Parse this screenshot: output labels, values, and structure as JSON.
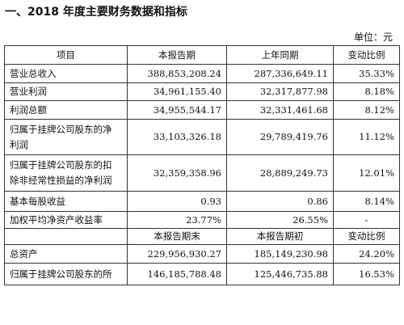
{
  "document": {
    "title": "一、2018 年度主要财务数据和指标",
    "unit": "单位：元"
  },
  "table": {
    "header1": [
      "项目",
      "本报告期",
      "上年同期",
      "变动比例"
    ],
    "rows1": [
      {
        "item": "营业总收入",
        "current": "388,853,208.24",
        "prior": "287,336,649.11",
        "change": "35.33%"
      },
      {
        "item": "营业利润",
        "current": "34,961,155.40",
        "prior": "32,317,877.98",
        "change": "8.18%"
      },
      {
        "item": "利润总额",
        "current": "34,955,544.17",
        "prior": "32,331,461.68",
        "change": "8.12%"
      },
      {
        "item_line1": "归属于挂牌公司股东的净",
        "item_line2": "利润",
        "current": "33,103,326.18",
        "prior": "29,789,419.76",
        "change": "11.12%"
      },
      {
        "item_line1": "归属于挂牌公司股东的扣",
        "item_line2": "除非经常性损益的净利润",
        "current": "32,359,358.96",
        "prior": "28,889,249.73",
        "change": "12.01%"
      },
      {
        "item": "基本每股收益",
        "current": "0.93",
        "prior": "0.86",
        "change": "8.14%"
      },
      {
        "item": "加权平均净资产收益率",
        "current": "23.77%",
        "prior": "26.55%",
        "change": "-"
      }
    ],
    "header2": [
      "",
      "本报告期末",
      "本报告期初",
      "变动比例"
    ],
    "rows2": [
      {
        "item": "总资产",
        "current": "229,956,930.27",
        "prior": "185,149,230.98",
        "change": "24.20%"
      },
      {
        "item": "归属于挂牌公司股东的所",
        "current": "146,185,788.48",
        "prior": "125,446,735.88",
        "change": "16.53%"
      }
    ]
  }
}
